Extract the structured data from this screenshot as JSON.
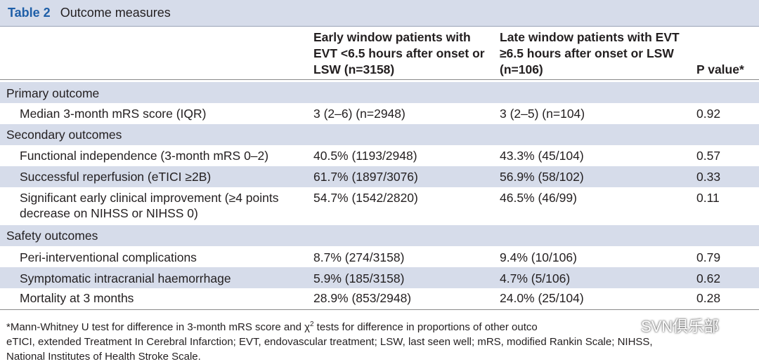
{
  "table": {
    "label": "Table 2",
    "title": "Outcome measures",
    "headers": {
      "early": "Early window patients with EVT <6.5 hours after onset or LSW (n=3158)",
      "late": "Late window patients with EVT ≥6.5 hours after onset or LSW (n=106)",
      "p": "P value*"
    },
    "sections": {
      "primary": "Primary outcome",
      "secondary": "Secondary outcomes",
      "safety": "Safety outcomes"
    },
    "rows": {
      "mrs": {
        "label": "Median 3-month mRS score (IQR)",
        "early": "3 (2–6) (n=2948)",
        "late": "3 (2–5) (n=104)",
        "p": "0.92"
      },
      "functional": {
        "label": "Functional independence (3-month mRS 0–2)",
        "early": "40.5% (1193/2948)",
        "late": "43.3% (45/104)",
        "p": "0.57"
      },
      "reperfusion": {
        "label": "Successful reperfusion (eTICI ≥2B)",
        "early": "61.7% (1897/3076)",
        "late": "56.9% (58/102)",
        "p": "0.33"
      },
      "improvement": {
        "label": "Significant early clinical improvement (≥4 points decrease on NIHSS or NIHSS 0)",
        "early": "54.7% (1542/2820)",
        "late": "46.5% (46/99)",
        "p": "0.11"
      },
      "complications": {
        "label": "Peri-interventional complications",
        "early": "8.7% (274/3158)",
        "late": "9.4% (10/106)",
        "p": "0.79"
      },
      "haemorrhage": {
        "label": "Symptomatic intracranial haemorrhage",
        "early": "5.9% (185/3158)",
        "late": "4.7% (5/106)",
        "p": "0.62"
      },
      "mortality": {
        "label": "Mortality at 3 months",
        "early": "28.9% (853/2948)",
        "late": "24.0% (25/104)",
        "p": "0.28"
      }
    },
    "footnote": {
      "line1_pre": "*Mann-Whitney U test for difference in 3-month mRS score and χ",
      "line1_sup": "2",
      "line1_post": " tests for difference in proportions of other outco",
      "line2": "eTICI, extended Treatment In Cerebral Infarction; EVT, endovascular treatment; LSW, last seen well; mRS, modified Rankin Scale; NIHSS,",
      "line3": "National Institutes of Health Stroke Scale."
    }
  },
  "watermark": {
    "text": "SVN俱乐部",
    "icon": "wechat-icon"
  }
}
